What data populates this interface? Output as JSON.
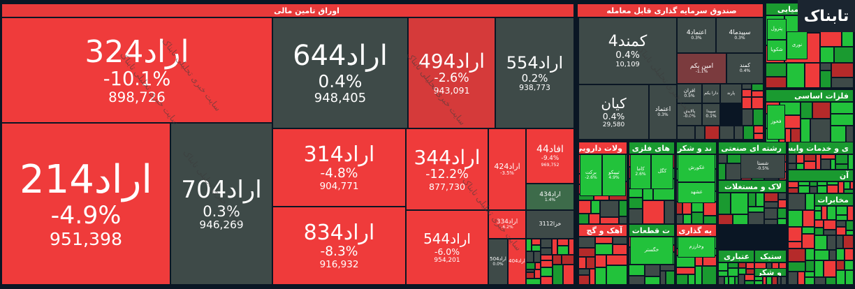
{
  "logo": "تابناک",
  "watermark": "سایت خبری تحلیلی تابناک",
  "panels": [
    {
      "title": "اوراق تامین مالی",
      "tiles": [
        {
          "name": "اراد324",
          "change": "-10.1%",
          "volume": "898,726"
        },
        {
          "name": "اراد644",
          "change": "0.4%",
          "volume": "948,405"
        },
        {
          "name": "اراد494",
          "change": "-2.6%",
          "volume": "943,091"
        },
        {
          "name": "اراد554",
          "change": "0.2%",
          "volume": "938,773"
        },
        {
          "name": "اراد214",
          "change": "-4.9%",
          "volume": "951,398"
        },
        {
          "name": "اراد704",
          "change": "0.3%",
          "volume": "946,269"
        },
        {
          "name": "اراد314",
          "change": "-4.8%",
          "volume": "904,771"
        },
        {
          "name": "اراد834",
          "change": "-8.3%",
          "volume": "916,932"
        },
        {
          "name": "اراد344",
          "change": "-12.2%",
          "volume": "877,730"
        },
        {
          "name": "اراد424",
          "change": "-3.5%"
        },
        {
          "name": "افاد44",
          "change": "-9.4%",
          "volume": "969,752"
        },
        {
          "name": "اراد434",
          "change": "1.4%"
        },
        {
          "name": "اراد544",
          "change": "-6.0%",
          "volume": "954,201"
        },
        {
          "name": "اراد334",
          "change": "-6.2%"
        },
        {
          "name": "خزا3112"
        },
        {
          "name": "اراد504",
          "change": "0.0%"
        },
        {
          "name": "اراد404"
        }
      ]
    },
    {
      "title": "صندوق سرمایه گذاری قابل معامله",
      "tiles": [
        {
          "name": "کمند4",
          "change": "0.4%",
          "volume": "10,109"
        },
        {
          "name": "کیان",
          "change": "0.4%",
          "volume": "29,580"
        },
        {
          "name": "اعتماد",
          "change": "0.3%"
        },
        {
          "name": "اعتماد4",
          "change": "0.3%"
        },
        {
          "name": "سپیدما4",
          "change": "0.3%"
        },
        {
          "name": "امین یکم",
          "change": "-1.1%"
        },
        {
          "name": "کمند",
          "change": "0.4%"
        },
        {
          "name": "افران",
          "change": "0.5%"
        },
        {
          "name": "دارا یکم"
        },
        {
          "name": "پارند"
        },
        {
          "name": "پالایش",
          "change": "-0.0%"
        },
        {
          "name": "سپیدا",
          "change": "0.1%"
        }
      ]
    }
  ],
  "sectors": [
    {
      "title": "محصولات شیمیایی",
      "tiles": [
        {
          "name": "پترول"
        },
        {
          "name": "نوری"
        },
        {
          "name": "شکویا"
        }
      ]
    },
    {
      "title": "فلزات اساسی",
      "tiles": [
        {
          "name": "فخوز"
        }
      ]
    },
    {
      "title": "ولات دارویی",
      "tiles": [
        {
          "name": "برکت",
          "change": "-2.6%"
        },
        {
          "name": "تیپیکو",
          "change": "4.9%"
        }
      ]
    },
    {
      "title": "های فلزی",
      "tiles": [
        {
          "name": "کاما",
          "change": "2.6%"
        },
        {
          "name": "کگل"
        }
      ]
    },
    {
      "title": "ند و شکر",
      "tiles": [
        {
          "name": "غکورش"
        },
        {
          "name": "غشهد"
        }
      ]
    },
    {
      "title": "رشته ای صنعتی",
      "tiles": [
        {
          "name": "شستا",
          "change": "-0.5%"
        }
      ]
    },
    {
      "title": "ی و خدمات وابسته",
      "tiles": []
    },
    {
      "title": "آهک و گچ",
      "tiles": []
    },
    {
      "title": "ت قطعات",
      "tiles": [
        {
          "name": "خگستر"
        }
      ]
    },
    {
      "title": "یه گذاری",
      "tiles": [
        {
          "name": "وخارزم"
        }
      ]
    },
    {
      "title": "لاک و مستغلات",
      "tiles": []
    },
    {
      "title": "آن",
      "tiles": []
    },
    {
      "title": "مخابرات",
      "tiles": []
    },
    {
      "title": "عتباری",
      "tiles": []
    },
    {
      "title": "ستیک",
      "tiles": []
    },
    {
      "title": "و شکر",
      "tiles": []
    }
  ]
}
